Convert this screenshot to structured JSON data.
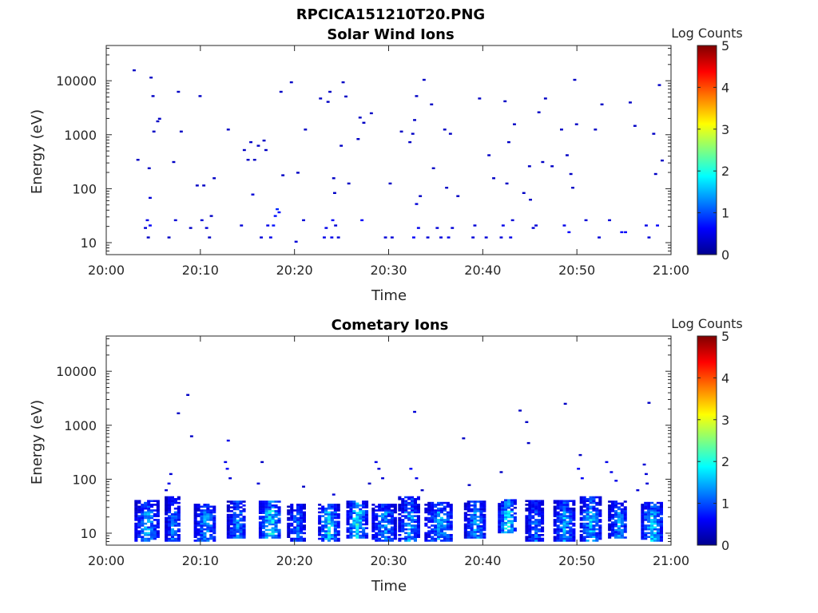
{
  "figure_title": "RPCICA151210T20.PNG",
  "chart_data": [
    {
      "type": "heatmap",
      "title": "Solar Wind Ions",
      "xlabel": "Time",
      "ylabel": "Energy (eV)",
      "x_tick_labels": [
        "20:00",
        "20:10",
        "20:20",
        "20:30",
        "20:40",
        "20:50",
        "21:00"
      ],
      "x_range_minutes": [
        0,
        60
      ],
      "y_scale": "log",
      "y_tick_labels": [
        "10",
        "100",
        "1000",
        "10000"
      ],
      "y_ticks": [
        10,
        100,
        1000,
        10000
      ],
      "ylim": [
        6,
        45000
      ],
      "colorbar": {
        "label": "Log Counts",
        "range": [
          0,
          5
        ],
        "ticks": [
          "0",
          "1",
          "2",
          "3",
          "4",
          "5"
        ],
        "colormap": "jet"
      },
      "grid": false,
      "cells": [
        [
          2.8,
          15000,
          0.3
        ],
        [
          3.2,
          330,
          0.3
        ],
        [
          4.0,
          18,
          0.4
        ],
        [
          4.2,
          25,
          0.5
        ],
        [
          4.3,
          12,
          0.3
        ],
        [
          4.5,
          20,
          0.6
        ],
        [
          4.5,
          65,
          0.4
        ],
        [
          4.4,
          230,
          0.3
        ],
        [
          4.6,
          11000,
          0.3
        ],
        [
          4.8,
          5000,
          0.3
        ],
        [
          4.9,
          1100,
          0.3
        ],
        [
          5.3,
          1700,
          0.3
        ],
        [
          5.5,
          1900,
          0.3
        ],
        [
          6.5,
          12,
          0.3
        ],
        [
          7.0,
          300,
          0.3
        ],
        [
          7.2,
          25,
          0.4
        ],
        [
          7.5,
          6000,
          0.3
        ],
        [
          7.8,
          1100,
          0.3
        ],
        [
          8.8,
          18,
          0.3
        ],
        [
          9.5,
          110,
          0.3
        ],
        [
          9.8,
          5000,
          0.3
        ],
        [
          10.0,
          25,
          0.4
        ],
        [
          10.2,
          110,
          0.3
        ],
        [
          10.5,
          18,
          0.4
        ],
        [
          10.8,
          12,
          0.3
        ],
        [
          11.0,
          30,
          0.3
        ],
        [
          11.3,
          150,
          0.3
        ],
        [
          12.8,
          1200,
          0.3
        ],
        [
          14.2,
          20,
          0.4
        ],
        [
          14.5,
          500,
          0.3
        ],
        [
          14.9,
          330,
          0.3
        ],
        [
          15.2,
          700,
          0.3
        ],
        [
          15.4,
          75,
          0.4
        ],
        [
          15.6,
          330,
          0.3
        ],
        [
          16.0,
          600,
          0.3
        ],
        [
          16.3,
          12,
          0.4
        ],
        [
          16.6,
          750,
          0.3
        ],
        [
          16.8,
          500,
          0.3
        ],
        [
          17.0,
          20,
          0.5
        ],
        [
          17.3,
          12,
          0.5
        ],
        [
          17.6,
          20,
          0.7
        ],
        [
          17.8,
          30,
          0.7
        ],
        [
          18.0,
          40,
          0.8
        ],
        [
          18.2,
          35,
          0.7
        ],
        [
          18.4,
          6000,
          0.3
        ],
        [
          18.6,
          170,
          0.3
        ],
        [
          19.5,
          9000,
          0.3
        ],
        [
          20.0,
          10,
          0.4
        ],
        [
          20.2,
          190,
          0.3
        ],
        [
          20.8,
          25,
          0.4
        ],
        [
          21.0,
          1200,
          0.3
        ],
        [
          22.6,
          4500,
          0.3
        ],
        [
          23.0,
          12,
          0.5
        ],
        [
          23.2,
          18,
          0.5
        ],
        [
          23.4,
          3900,
          0.3
        ],
        [
          23.6,
          6000,
          0.3
        ],
        [
          23.8,
          12,
          0.5
        ],
        [
          23.9,
          25,
          0.6
        ],
        [
          24.0,
          150,
          0.3
        ],
        [
          24.1,
          80,
          0.3
        ],
        [
          24.2,
          20,
          0.4
        ],
        [
          24.5,
          12,
          0.4
        ],
        [
          24.8,
          600,
          0.3
        ],
        [
          25.0,
          9000,
          0.3
        ],
        [
          25.3,
          4900,
          0.3
        ],
        [
          25.6,
          120,
          0.3
        ],
        [
          26.6,
          800,
          0.3
        ],
        [
          26.8,
          2000,
          0.3
        ],
        [
          27.0,
          25,
          0.6
        ],
        [
          27.2,
          1600,
          0.3
        ],
        [
          28.0,
          2400,
          0.3
        ],
        [
          29.5,
          12,
          0.4
        ],
        [
          30.0,
          120,
          0.3
        ],
        [
          30.2,
          12,
          0.4
        ],
        [
          31.2,
          1100,
          0.3
        ],
        [
          32.1,
          700,
          0.3
        ],
        [
          32.4,
          1000,
          0.3
        ],
        [
          32.6,
          1800,
          0.3
        ],
        [
          32.8,
          5000,
          0.3
        ],
        [
          32.5,
          12,
          0.6
        ],
        [
          32.8,
          50,
          0.4
        ],
        [
          33.0,
          18,
          0.5
        ],
        [
          33.2,
          70,
          0.3
        ],
        [
          33.6,
          10000,
          0.3
        ],
        [
          34.0,
          12,
          0.4
        ],
        [
          34.4,
          3500,
          0.3
        ],
        [
          34.6,
          230,
          0.3
        ],
        [
          35.0,
          18,
          0.4
        ],
        [
          35.4,
          12,
          0.4
        ],
        [
          35.8,
          1200,
          0.3
        ],
        [
          36.0,
          100,
          0.3
        ],
        [
          36.2,
          12,
          0.5
        ],
        [
          36.4,
          1000,
          0.3
        ],
        [
          36.6,
          18,
          0.4
        ],
        [
          37.2,
          70,
          0.3
        ],
        [
          38.8,
          12,
          0.4
        ],
        [
          39.0,
          20,
          0.4
        ],
        [
          39.5,
          4500,
          0.3
        ],
        [
          40.2,
          12,
          0.4
        ],
        [
          40.5,
          400,
          0.3
        ],
        [
          41.0,
          150,
          0.3
        ],
        [
          41.8,
          12,
          0.4
        ],
        [
          42.0,
          20,
          0.5
        ],
        [
          42.2,
          4000,
          0.3
        ],
        [
          42.4,
          120,
          0.3
        ],
        [
          42.6,
          700,
          0.3
        ],
        [
          42.8,
          12,
          0.5
        ],
        [
          43.0,
          25,
          0.4
        ],
        [
          43.2,
          1500,
          0.3
        ],
        [
          44.2,
          80,
          0.3
        ],
        [
          44.8,
          250,
          0.3
        ],
        [
          44.9,
          60,
          0.3
        ],
        [
          45.2,
          18,
          0.4
        ],
        [
          45.5,
          20,
          0.4
        ],
        [
          45.8,
          2500,
          0.3
        ],
        [
          46.2,
          300,
          0.3
        ],
        [
          46.5,
          4500,
          0.3
        ],
        [
          47.2,
          250,
          0.3
        ],
        [
          48.2,
          1200,
          0.3
        ],
        [
          48.5,
          20,
          0.5
        ],
        [
          48.8,
          400,
          0.3
        ],
        [
          49.0,
          15,
          0.6
        ],
        [
          49.2,
          180,
          0.3
        ],
        [
          49.4,
          100,
          0.3
        ],
        [
          49.6,
          10000,
          0.3
        ],
        [
          49.8,
          1500,
          0.3
        ],
        [
          50.8,
          25,
          0.4
        ],
        [
          51.8,
          1200,
          0.3
        ],
        [
          52.2,
          12,
          0.4
        ],
        [
          52.5,
          3500,
          0.3
        ],
        [
          53.3,
          25,
          0.4
        ],
        [
          54.6,
          15,
          0.6
        ],
        [
          55.0,
          15,
          0.6
        ],
        [
          55.5,
          3800,
          0.3
        ],
        [
          56.0,
          1400,
          0.3
        ],
        [
          57.2,
          20,
          0.5
        ],
        [
          57.5,
          12,
          0.4
        ],
        [
          58.0,
          1000,
          0.3
        ],
        [
          58.2,
          180,
          0.3
        ],
        [
          58.4,
          20,
          0.6
        ],
        [
          58.6,
          8000,
          0.3
        ],
        [
          58.9,
          320,
          0.3
        ]
      ]
    },
    {
      "type": "heatmap",
      "title": "Cometary Ions",
      "xlabel": "Time",
      "ylabel": "Energy (eV)",
      "x_tick_labels": [
        "20:00",
        "20:10",
        "20:20",
        "20:30",
        "20:40",
        "20:50",
        "21:00"
      ],
      "x_range_minutes": [
        0,
        60
      ],
      "y_scale": "log",
      "y_tick_labels": [
        "10",
        "100",
        "1000",
        "10000"
      ],
      "y_ticks": [
        10,
        100,
        1000,
        10000
      ],
      "ylim": [
        6,
        45000
      ],
      "colorbar": {
        "label": "Log Counts",
        "range": [
          0,
          5
        ],
        "ticks": [
          "0",
          "1",
          "2",
          "3",
          "4",
          "5"
        ],
        "colormap": "jet"
      },
      "grid": false,
      "bursts": [
        {
          "start": 3.0,
          "end": 5.5,
          "low": 7,
          "high": 40,
          "peak": 1.6
        },
        {
          "start": 6.2,
          "end": 7.8,
          "low": 7,
          "high": 45,
          "peak": 1.4
        },
        {
          "start": 9.3,
          "end": 11.6,
          "low": 7,
          "high": 35,
          "peak": 1.6
        },
        {
          "start": 12.8,
          "end": 14.8,
          "low": 8,
          "high": 40,
          "peak": 1.5
        },
        {
          "start": 16.2,
          "end": 18.5,
          "low": 8,
          "high": 40,
          "peak": 2.0
        },
        {
          "start": 19.2,
          "end": 21.0,
          "low": 7,
          "high": 35,
          "peak": 1.3
        },
        {
          "start": 22.5,
          "end": 24.5,
          "low": 7,
          "high": 35,
          "peak": 2.0
        },
        {
          "start": 25.5,
          "end": 27.6,
          "low": 8,
          "high": 40,
          "peak": 2.1
        },
        {
          "start": 28.2,
          "end": 30.6,
          "low": 7,
          "high": 35,
          "peak": 1.6
        },
        {
          "start": 31.0,
          "end": 33.2,
          "low": 7,
          "high": 45,
          "peak": 1.7
        },
        {
          "start": 33.8,
          "end": 36.8,
          "low": 7,
          "high": 38,
          "peak": 1.6
        },
        {
          "start": 38.0,
          "end": 40.2,
          "low": 8,
          "high": 40,
          "peak": 1.6
        },
        {
          "start": 41.6,
          "end": 43.3,
          "low": 10,
          "high": 40,
          "peak": 2.2
        },
        {
          "start": 44.5,
          "end": 46.3,
          "low": 7,
          "high": 40,
          "peak": 1.4
        },
        {
          "start": 47.5,
          "end": 49.6,
          "low": 7,
          "high": 40,
          "peak": 1.7
        },
        {
          "start": 50.3,
          "end": 52.4,
          "low": 7,
          "high": 45,
          "peak": 1.8
        },
        {
          "start": 53.3,
          "end": 55.3,
          "low": 8,
          "high": 40,
          "peak": 1.5
        },
        {
          "start": 56.8,
          "end": 59.0,
          "low": 7,
          "high": 38,
          "peak": 1.9
        }
      ],
      "cells": [
        [
          6.2,
          60,
          0.4
        ],
        [
          6.5,
          80,
          0.5
        ],
        [
          6.7,
          120,
          0.4
        ],
        [
          7.5,
          1600,
          0.3
        ],
        [
          8.5,
          3500,
          0.3
        ],
        [
          8.9,
          600,
          0.3
        ],
        [
          12.5,
          200,
          0.5
        ],
        [
          12.7,
          150,
          0.6
        ],
        [
          12.8,
          500,
          0.5
        ],
        [
          13.0,
          100,
          0.4
        ],
        [
          16.0,
          80,
          0.4
        ],
        [
          16.4,
          200,
          0.3
        ],
        [
          20.8,
          70,
          0.3
        ],
        [
          24.0,
          50,
          0.4
        ],
        [
          27.8,
          80,
          0.3
        ],
        [
          28.5,
          200,
          0.5
        ],
        [
          28.8,
          150,
          0.4
        ],
        [
          29.2,
          100,
          0.4
        ],
        [
          32.2,
          150,
          0.6
        ],
        [
          32.6,
          1700,
          0.4
        ],
        [
          32.8,
          100,
          0.5
        ],
        [
          33.4,
          60,
          0.3
        ],
        [
          37.8,
          550,
          0.3
        ],
        [
          38.4,
          75,
          0.3
        ],
        [
          41.8,
          130,
          0.3
        ],
        [
          43.8,
          1800,
          0.3
        ],
        [
          44.5,
          1100,
          0.3
        ],
        [
          44.7,
          450,
          0.3
        ],
        [
          48.6,
          2400,
          0.3
        ],
        [
          50.0,
          150,
          0.6
        ],
        [
          50.2,
          270,
          0.3
        ],
        [
          50.4,
          100,
          0.6
        ],
        [
          53.0,
          200,
          0.5
        ],
        [
          53.5,
          130,
          0.5
        ],
        [
          54.0,
          90,
          0.5
        ],
        [
          56.3,
          60,
          0.4
        ],
        [
          57.0,
          180,
          0.4
        ],
        [
          57.2,
          120,
          0.4
        ],
        [
          57.3,
          80,
          0.4
        ],
        [
          57.5,
          2500,
          0.3
        ]
      ]
    }
  ]
}
